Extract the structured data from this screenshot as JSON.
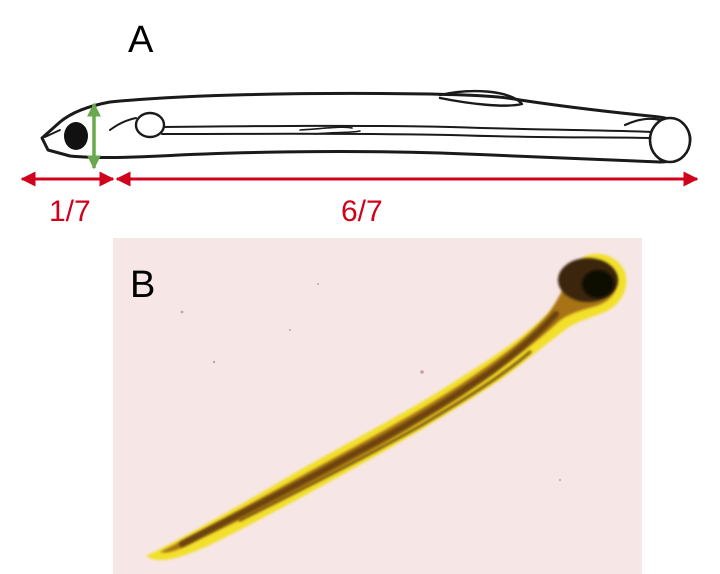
{
  "panel_a": {
    "label": "A",
    "left_fraction_label": "1/7",
    "right_fraction_label": "6/7"
  },
  "panel_b": {
    "label": "B"
  },
  "colors": {
    "measure_red": "#d0021b",
    "height_green": "#6aa84f",
    "outline": "#1a1a1a",
    "photo_background": "#f7e6e6",
    "larva_yellow": "#f2e02a",
    "larva_brown": "#8a5a10",
    "larva_dark": "#3a2508"
  },
  "icons": [
    "larva-drawing-icon",
    "larva-photo-icon"
  ]
}
